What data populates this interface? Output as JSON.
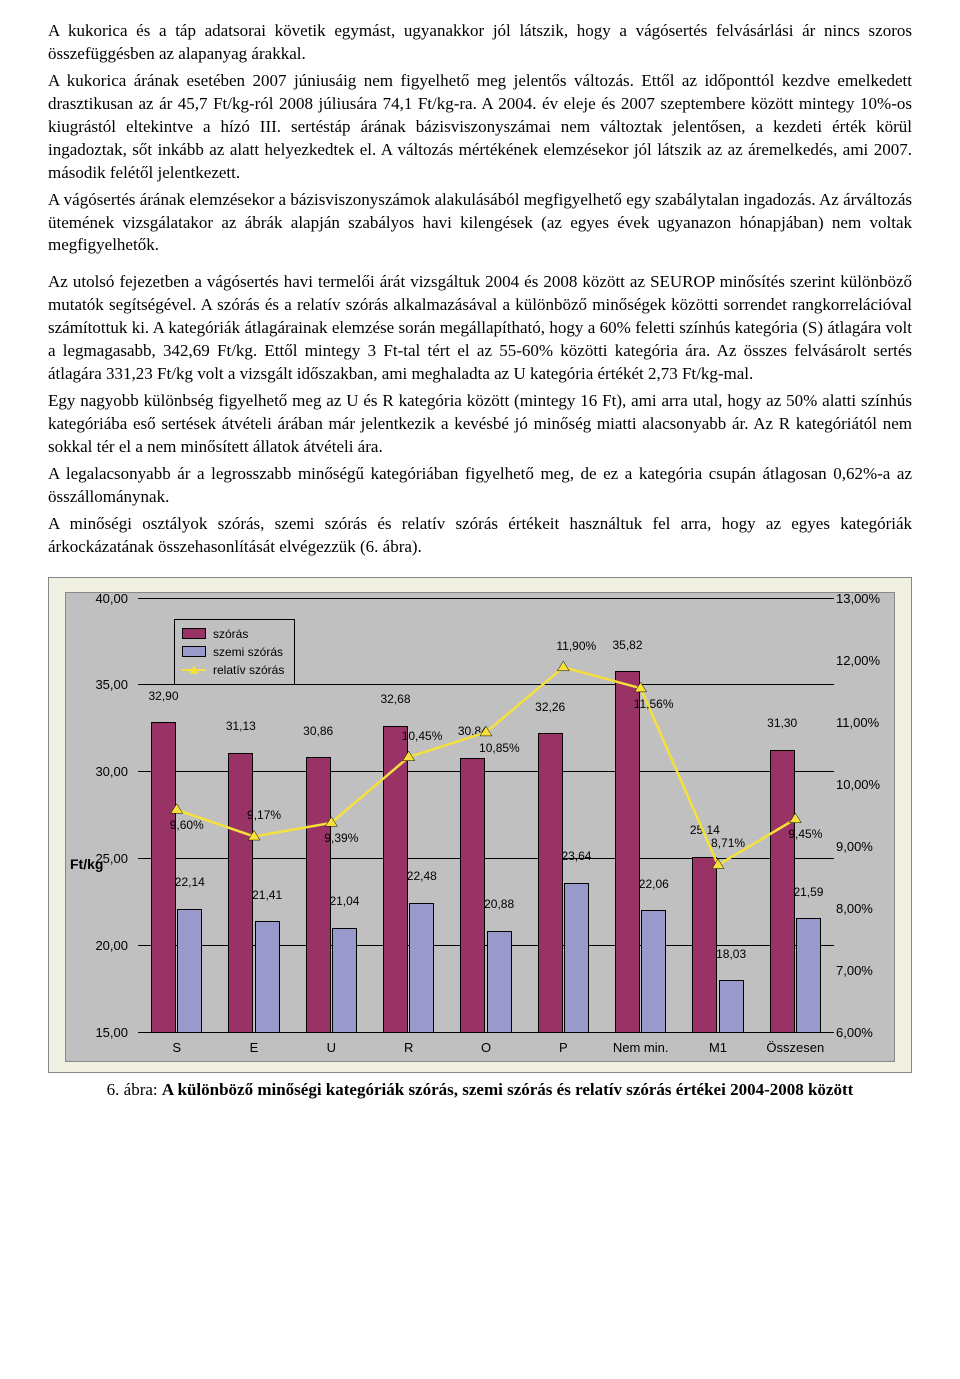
{
  "paragraphs": {
    "p1": "A kukorica és a táp adatsorai követik egymást, ugyanakkor jól látszik, hogy a vágósertés felvásárlási ár nincs szoros összefüggésben az alapanyag árakkal.",
    "p2": "A kukorica árának esetében 2007 júniusáig nem figyelhető meg jelentős változás. Ettől az időponttól kezdve emelkedett drasztikusan az ár 45,7 Ft/kg-ról 2008 júliusára 74,1 Ft/kg-ra. A 2004. év eleje és 2007 szeptembere között mintegy 10%-os kiugrástól eltekintve a hízó III. sertéstáp árának bázisviszonyszámai nem változtak jelentősen, a kezdeti érték körül ingadoztak, sőt inkább az alatt helyezkedtek el. A változás mértékének elemzésekor jól látszik az az áremelkedés, ami 2007. második felétől jelentkezett.",
    "p3": "A vágósertés árának elemzésekor a bázisviszonyszámok alakulásából megfigyelhető egy szabálytalan ingadozás. Az árváltozás ütemének vizsgálatakor az ábrák alapján szabályos havi kilengések (az egyes évek ugyanazon hónapjában) nem voltak megfigyelhetők.",
    "p4": "Az utolsó fejezetben a vágósertés havi termelői árát vizsgáltuk 2004 és 2008 között az SEUROP minősítés szerint különböző mutatók segítségével. A szórás és a relatív szórás alkalmazásával a különböző minőségek közötti sorrendet rangkorrelációval számítottuk ki. A kategóriák átlagárainak elemzése során megállapítható, hogy a 60% feletti színhús kategória (S) átlagára volt a legmagasabb, 342,69 Ft/kg. Ettől mintegy 3 Ft-tal tért el az 55-60% közötti kategória ára. Az összes felvásárolt sertés átlagára 331,23 Ft/kg volt a vizsgált időszakban, ami meghaladta az U kategória értékét 2,73 Ft/kg-mal.",
    "p5": "Egy nagyobb különbség figyelhető meg az U és R kategória között (mintegy 16 Ft), ami arra utal, hogy az 50% alatti színhús kategóriába eső sertések átvételi árában már jelentkezik a kevésbé jó minőség miatti alacsonyabb ár. Az R kategóriától nem sokkal tér el a nem minősített állatok átvételi ára.",
    "p6": "A legalacsonyabb ár a legrosszabb minőségű kategóriában figyelhető meg, de ez a kategória csupán átlagosan 0,62%-a az összállománynak.",
    "p7": "A minőségi osztályok szórás, szemi szórás és relatív szórás értékeit használtuk fel arra, hogy az egyes kategóriák árkockázatának összehasonlítását elvégezzük (6. ábra)."
  },
  "caption": {
    "prefix": "6. ábra: ",
    "bold": "A különböző minőségi kategóriák szórás, szemi szórás és relatív szórás értékei 2004-2008 között"
  },
  "chart": {
    "categories": [
      "S",
      "E",
      "U",
      "R",
      "O",
      "P",
      "Nem min.",
      "M1",
      "Összesen"
    ],
    "series_bar1": {
      "name": "szórás",
      "color": "#993366",
      "values": [
        32.9,
        31.13,
        30.86,
        32.68,
        30.84,
        32.26,
        35.82,
        25.14,
        31.3
      ],
      "labels": [
        "32,90",
        "31,13",
        "30,86",
        "32,68",
        "30,84",
        "32,26",
        "35,82",
        "25,14",
        "31,30"
      ]
    },
    "series_bar2": {
      "name": "szemi szórás",
      "color": "#9999cc",
      "values": [
        22.14,
        21.41,
        21.04,
        22.48,
        20.88,
        23.64,
        22.06,
        18.03,
        21.59
      ],
      "labels": [
        "22,14",
        "21,41",
        "21,04",
        "22,48",
        "20,88",
        "23,64",
        "22,06",
        "18,03",
        "21,59"
      ]
    },
    "series_line": {
      "name": "relatív szórás",
      "color": "#f6e03a",
      "values": [
        9.6,
        9.17,
        9.39,
        10.45,
        10.85,
        11.9,
        11.56,
        8.71,
        9.45
      ],
      "labels": [
        "9,60%",
        "9,17%",
        "9,39%",
        "10,45%",
        "10,85%",
        "11,90%",
        "11,56%",
        "8,71%",
        "9,45%"
      ]
    },
    "y_left": {
      "min": 15,
      "max": 40,
      "step": 5,
      "unit": "Ft/kg",
      "labels": [
        "15,00",
        "20,00",
        "25,00",
        "30,00",
        "35,00",
        "40,00"
      ]
    },
    "y_right": {
      "min": 6,
      "max": 13,
      "step": 1,
      "labels": [
        "6,00%",
        "7,00%",
        "8,00%",
        "9,00%",
        "10,00%",
        "11,00%",
        "12,00%",
        "13,00%"
      ]
    },
    "background": "#c0c0c0",
    "outer_background": "#f0f0e3"
  }
}
